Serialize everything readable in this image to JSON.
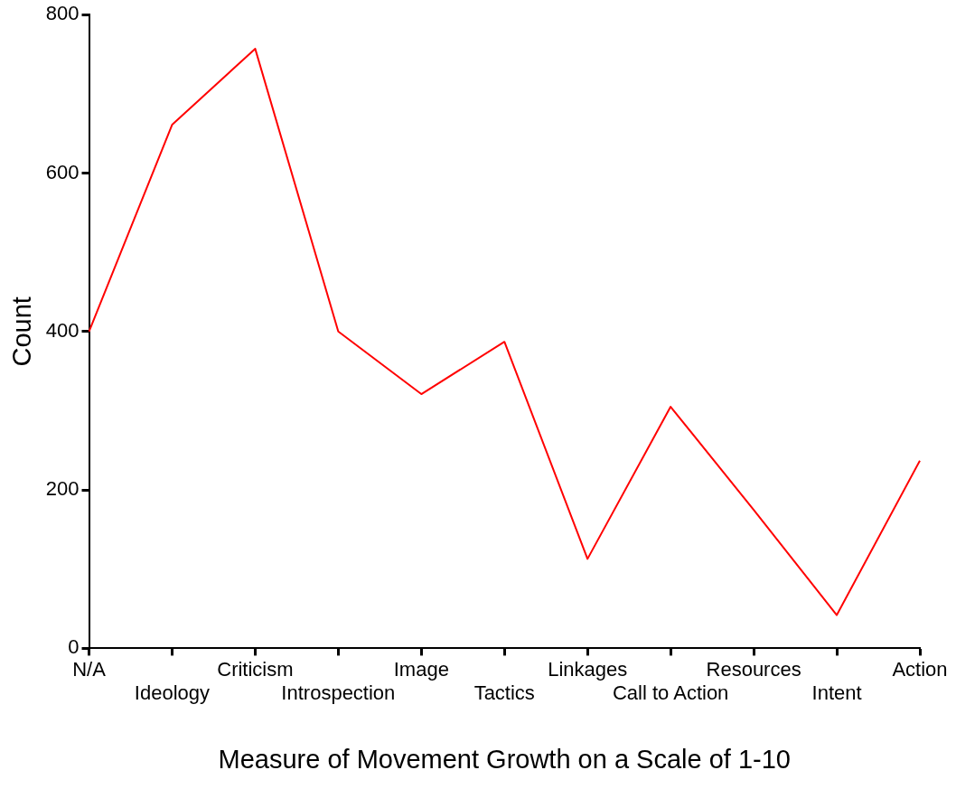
{
  "chart_data": {
    "type": "line",
    "xlabel": "Measure of Movement Growth on a Scale of 1-10",
    "ylabel": "Count",
    "categories": [
      "N/A",
      "Ideology",
      "Criticism",
      "Introspection",
      "Image",
      "Tactics",
      "Linkages",
      "Call to Action",
      "Resources",
      "Intent",
      "Action"
    ],
    "series": [
      {
        "color": "#ff0000",
        "values": [
          400,
          661,
          757,
          400,
          321,
          387,
          113,
          305,
          175,
          42,
          237
        ]
      }
    ],
    "ylim": [
      0,
      800
    ],
    "yticks": [
      0,
      200,
      400,
      600,
      800
    ],
    "grid": false,
    "legend": false,
    "marker": "none",
    "line_style": "solid"
  }
}
